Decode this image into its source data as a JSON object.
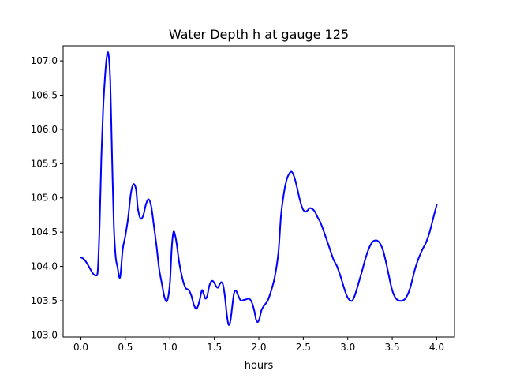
{
  "chart_data": {
    "type": "line",
    "title": "Water Depth h at gauge 125",
    "xlabel": "hours",
    "ylabel": "",
    "xlim": [
      -0.2,
      4.2
    ],
    "ylim": [
      102.97,
      107.22
    ],
    "xticks": [
      0.0,
      0.5,
      1.0,
      1.5,
      2.0,
      2.5,
      3.0,
      3.5,
      4.0
    ],
    "xtick_labels": [
      "0.0",
      "0.5",
      "1.0",
      "1.5",
      "2.0",
      "2.5",
      "3.0",
      "3.5",
      "4.0"
    ],
    "yticks": [
      103.0,
      103.5,
      104.0,
      104.5,
      105.0,
      105.5,
      106.0,
      106.5,
      107.0
    ],
    "ytick_labels": [
      "103.0",
      "103.5",
      "104.0",
      "104.5",
      "105.0",
      "105.5",
      "106.0",
      "106.5",
      "107.0"
    ],
    "grid": false,
    "line_color": "#0000ff",
    "series": [
      {
        "x": [
          0.0,
          0.02,
          0.05,
          0.08,
          0.11,
          0.14,
          0.17,
          0.19,
          0.21,
          0.23,
          0.25,
          0.27,
          0.29,
          0.31,
          0.33,
          0.35,
          0.37,
          0.39,
          0.41,
          0.44,
          0.47,
          0.5,
          0.53,
          0.56,
          0.59,
          0.62,
          0.64,
          0.67,
          0.7,
          0.73,
          0.76,
          0.79,
          0.82,
          0.85,
          0.88,
          0.91,
          0.94,
          0.97,
          1.0,
          1.02,
          1.04,
          1.06,
          1.08,
          1.1,
          1.12,
          1.15,
          1.18,
          1.21,
          1.24,
          1.27,
          1.3,
          1.33,
          1.36,
          1.38,
          1.4,
          1.42,
          1.44,
          1.46,
          1.48,
          1.5,
          1.52,
          1.54,
          1.56,
          1.58,
          1.6,
          1.62,
          1.64,
          1.66,
          1.68,
          1.7,
          1.72,
          1.74,
          1.76,
          1.78,
          1.8,
          1.83,
          1.86,
          1.89,
          1.92,
          1.95,
          1.97,
          1.99,
          2.01,
          2.03,
          2.06,
          2.1,
          2.14,
          2.18,
          2.22,
          2.25,
          2.28,
          2.31,
          2.34,
          2.37,
          2.4,
          2.43,
          2.46,
          2.49,
          2.52,
          2.55,
          2.57,
          2.6,
          2.63,
          2.66,
          2.69,
          2.72,
          2.76,
          2.8,
          2.84,
          2.88,
          2.92,
          2.96,
          2.99,
          3.02,
          3.05,
          3.08,
          3.12,
          3.16,
          3.2,
          3.24,
          3.28,
          3.31,
          3.34,
          3.37,
          3.4,
          3.43,
          3.46,
          3.49,
          3.52,
          3.55,
          3.58,
          3.61,
          3.64,
          3.67,
          3.7,
          3.73,
          3.76,
          3.8,
          3.84,
          3.88,
          3.92,
          3.96,
          4.0
        ],
        "y": [
          104.13,
          104.12,
          104.08,
          104.02,
          103.95,
          103.89,
          103.87,
          103.95,
          104.6,
          105.6,
          106.3,
          106.75,
          107.05,
          107.1,
          106.7,
          105.6,
          104.6,
          104.15,
          104.0,
          103.84,
          104.25,
          104.45,
          104.7,
          105.05,
          105.2,
          105.12,
          104.85,
          104.7,
          104.74,
          104.9,
          104.98,
          104.88,
          104.6,
          104.3,
          103.96,
          103.75,
          103.55,
          103.5,
          103.75,
          104.25,
          104.5,
          104.45,
          104.3,
          104.1,
          103.95,
          103.78,
          103.68,
          103.66,
          103.58,
          103.44,
          103.38,
          103.48,
          103.65,
          103.6,
          103.53,
          103.57,
          103.7,
          103.77,
          103.79,
          103.76,
          103.71,
          103.69,
          103.74,
          103.77,
          103.72,
          103.55,
          103.3,
          103.15,
          103.2,
          103.4,
          103.6,
          103.65,
          103.6,
          103.54,
          103.5,
          103.51,
          103.52,
          103.53,
          103.48,
          103.35,
          103.22,
          103.19,
          103.25,
          103.36,
          103.43,
          103.5,
          103.65,
          103.85,
          104.2,
          104.75,
          105.05,
          105.25,
          105.35,
          105.38,
          105.3,
          105.15,
          104.98,
          104.85,
          104.8,
          104.82,
          104.85,
          104.84,
          104.8,
          104.72,
          104.65,
          104.55,
          104.4,
          104.25,
          104.1,
          104.0,
          103.85,
          103.68,
          103.57,
          103.51,
          103.5,
          103.58,
          103.75,
          103.93,
          104.12,
          104.27,
          104.36,
          104.38,
          104.37,
          104.32,
          104.22,
          104.06,
          103.88,
          103.7,
          103.58,
          103.52,
          103.5,
          103.5,
          103.52,
          103.58,
          103.68,
          103.83,
          103.98,
          104.13,
          104.25,
          104.35,
          104.5,
          104.7,
          104.9
        ]
      }
    ]
  }
}
